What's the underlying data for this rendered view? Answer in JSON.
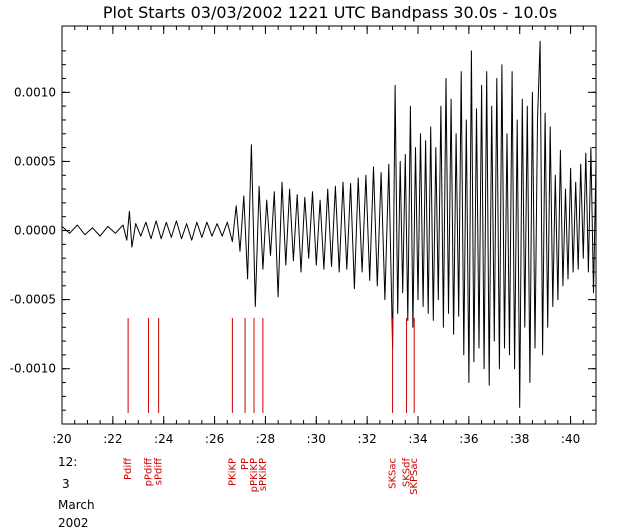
{
  "chart_data": {
    "type": "line",
    "title": "Plot Starts 03/03/2002 1221 UTC Bandpass 30.0s - 10.0s",
    "xlabel": "",
    "ylabel": "",
    "xlim": [
      20,
      41
    ],
    "ylim": [
      -0.0014,
      0.00148
    ],
    "x_ticks": [
      ":20",
      ":22",
      ":24",
      ":26",
      ":28",
      ":30",
      ":32",
      ":34",
      ":36",
      ":38",
      ":40"
    ],
    "x_tick_values": [
      20,
      22,
      24,
      26,
      28,
      30,
      32,
      34,
      36,
      38,
      40
    ],
    "y_ticks": [
      "0.0010",
      "0.0005",
      "0.0000",
      "-0.0005",
      "-0.0010"
    ],
    "y_tick_values": [
      0.001,
      0.0005,
      0.0,
      -0.0005,
      -0.001
    ],
    "date_labels": [
      "12:",
      "3",
      "March",
      "2002"
    ],
    "phases": [
      {
        "label": "Pdiff",
        "x": 22.6
      },
      {
        "label": "pPdiff",
        "x": 23.4
      },
      {
        "label": "sPdiff",
        "x": 23.8
      },
      {
        "label": "PKiKP",
        "x": 26.7
      },
      {
        "label": "PP",
        "x": 27.2
      },
      {
        "label": "pPKiKP",
        "x": 27.55
      },
      {
        "label": "sPKiKP",
        "x": 27.9
      },
      {
        "label": "SKSac",
        "x": 33.0
      },
      {
        "label": "SKSdf",
        "x": 33.55
      },
      {
        "label": "SKPSac",
        "x": 33.85
      }
    ],
    "series": [
      {
        "color": "#000000",
        "points": [
          [
            20.0,
            3e-05
          ],
          [
            20.3,
            -2e-05
          ],
          [
            20.6,
            4e-05
          ],
          [
            20.9,
            -3e-05
          ],
          [
            21.2,
            2e-05
          ],
          [
            21.5,
            -4e-05
          ],
          [
            21.8,
            3e-05
          ],
          [
            22.1,
            -2e-05
          ],
          [
            22.4,
            4e-05
          ],
          [
            22.55,
            -7e-05
          ],
          [
            22.65,
            0.00014
          ],
          [
            22.75,
            -0.00012
          ],
          [
            22.9,
            5e-05
          ],
          [
            23.1,
            -4e-05
          ],
          [
            23.3,
            6e-05
          ],
          [
            23.5,
            -6e-05
          ],
          [
            23.7,
            7e-05
          ],
          [
            23.9,
            -6e-05
          ],
          [
            24.1,
            6e-05
          ],
          [
            24.3,
            -5e-05
          ],
          [
            24.5,
            7e-05
          ],
          [
            24.7,
            -6e-05
          ],
          [
            24.9,
            5e-05
          ],
          [
            25.1,
            -7e-05
          ],
          [
            25.3,
            6e-05
          ],
          [
            25.5,
            -5e-05
          ],
          [
            25.7,
            6e-05
          ],
          [
            25.9,
            -4e-05
          ],
          [
            26.1,
            5e-05
          ],
          [
            26.3,
            -4e-05
          ],
          [
            26.5,
            6e-05
          ],
          [
            26.7,
            -8e-05
          ],
          [
            26.85,
            0.00018
          ],
          [
            27.0,
            -0.00015
          ],
          [
            27.15,
            0.00025
          ],
          [
            27.3,
            -0.00035
          ],
          [
            27.45,
            0.00062
          ],
          [
            27.6,
            -0.00055
          ],
          [
            27.75,
            0.00032
          ],
          [
            27.9,
            -0.00028
          ],
          [
            28.05,
            0.00022
          ],
          [
            28.2,
            -0.00018
          ],
          [
            28.35,
            0.00028
          ],
          [
            28.5,
            -0.00048
          ],
          [
            28.65,
            0.00035
          ],
          [
            28.8,
            -0.00025
          ],
          [
            28.95,
            0.0003
          ],
          [
            29.1,
            -0.00022
          ],
          [
            29.25,
            0.00026
          ],
          [
            29.4,
            -0.0003
          ],
          [
            29.55,
            0.00024
          ],
          [
            29.7,
            -0.0002
          ],
          [
            29.85,
            0.00028
          ],
          [
            30.0,
            -0.00025
          ],
          [
            30.15,
            0.00022
          ],
          [
            30.3,
            -0.00028
          ],
          [
            30.45,
            0.0003
          ],
          [
            30.6,
            -0.00026
          ],
          [
            30.75,
            0.00032
          ],
          [
            30.9,
            -0.0003
          ],
          [
            31.05,
            0.00035
          ],
          [
            31.2,
            -0.00028
          ],
          [
            31.35,
            0.00034
          ],
          [
            31.5,
            -0.00042
          ],
          [
            31.65,
            0.00038
          ],
          [
            31.8,
            -0.0003
          ],
          [
            31.95,
            0.0004
          ],
          [
            32.1,
            -0.00036
          ],
          [
            32.25,
            0.00046
          ],
          [
            32.4,
            -0.0004
          ],
          [
            32.55,
            0.00042
          ],
          [
            32.7,
            -0.0005
          ],
          [
            32.85,
            0.00048
          ],
          [
            33.0,
            -0.00085
          ],
          [
            33.1,
            0.00105
          ],
          [
            33.2,
            -0.0006
          ],
          [
            33.3,
            0.0005
          ],
          [
            33.4,
            -0.00045
          ],
          [
            33.5,
            0.00055
          ],
          [
            33.6,
            -0.00065
          ],
          [
            33.7,
            0.0009
          ],
          [
            33.8,
            -0.0007
          ],
          [
            33.9,
            0.0006
          ],
          [
            34.0,
            -0.0005
          ],
          [
            34.1,
            0.0007
          ],
          [
            34.2,
            -0.00055
          ],
          [
            34.3,
            0.00065
          ],
          [
            34.4,
            -0.0006
          ],
          [
            34.5,
            0.00075
          ],
          [
            34.6,
            -0.00065
          ],
          [
            34.7,
            0.0006
          ],
          [
            34.8,
            -0.0005
          ],
          [
            34.9,
            0.0009
          ],
          [
            35.0,
            -0.0007
          ],
          [
            35.1,
            0.0011
          ],
          [
            35.2,
            -0.0006
          ],
          [
            35.3,
            0.00095
          ],
          [
            35.4,
            -0.00075
          ],
          [
            35.5,
            0.0007
          ],
          [
            35.6,
            -0.00062
          ],
          [
            35.7,
            0.00115
          ],
          [
            35.8,
            -0.0009
          ],
          [
            35.9,
            0.0008
          ],
          [
            36.0,
            -0.0011
          ],
          [
            36.1,
            0.0013
          ],
          [
            36.2,
            -0.00095
          ],
          [
            36.3,
            0.00088
          ],
          [
            36.4,
            -0.00085
          ],
          [
            36.5,
            0.00105
          ],
          [
            36.6,
            -0.001
          ],
          [
            36.7,
            0.00115
          ],
          [
            36.8,
            -0.00112
          ],
          [
            36.9,
            0.0009
          ],
          [
            37.0,
            -0.0008
          ],
          [
            37.1,
            0.0011
          ],
          [
            37.2,
            -0.001
          ],
          [
            37.3,
            0.0012
          ],
          [
            37.4,
            -0.00085
          ],
          [
            37.5,
            0.0007
          ],
          [
            37.6,
            -0.0009
          ],
          [
            37.7,
            0.00115
          ],
          [
            37.8,
            -0.001
          ],
          [
            37.9,
            0.0008
          ],
          [
            38.0,
            -0.00128
          ],
          [
            38.1,
            0.00095
          ],
          [
            38.2,
            -0.0007
          ],
          [
            38.3,
            0.0009
          ],
          [
            38.4,
            -0.0011
          ],
          [
            38.5,
            0.001
          ],
          [
            38.6,
            -0.00085
          ],
          [
            38.7,
            0.0008
          ],
          [
            38.8,
            0.00137
          ],
          [
            38.9,
            -0.0009
          ],
          [
            39.0,
            0.00085
          ],
          [
            39.1,
            -0.0007
          ],
          [
            39.2,
            0.00075
          ],
          [
            39.3,
            -0.00055
          ],
          [
            39.4,
            0.0004
          ],
          [
            39.5,
            -0.0005
          ],
          [
            39.6,
            0.00058
          ],
          [
            39.7,
            -0.0004
          ],
          [
            39.8,
            0.0003
          ],
          [
            39.9,
            -0.00035
          ],
          [
            40.0,
            0.00045
          ],
          [
            40.1,
            -0.0003
          ],
          [
            40.2,
            0.00035
          ],
          [
            40.3,
            -0.00028
          ],
          [
            40.4,
            0.00048
          ],
          [
            40.5,
            -0.0002
          ],
          [
            40.6,
            0.00056
          ],
          [
            40.7,
            -0.0003
          ],
          [
            40.8,
            0.0006
          ],
          [
            40.9,
            -0.00045
          ],
          [
            41.0,
            0.0005
          ]
        ]
      }
    ],
    "phase_color": "#cc0000",
    "line_color": "#000000",
    "axes_color": "#000000",
    "grid": false
  }
}
